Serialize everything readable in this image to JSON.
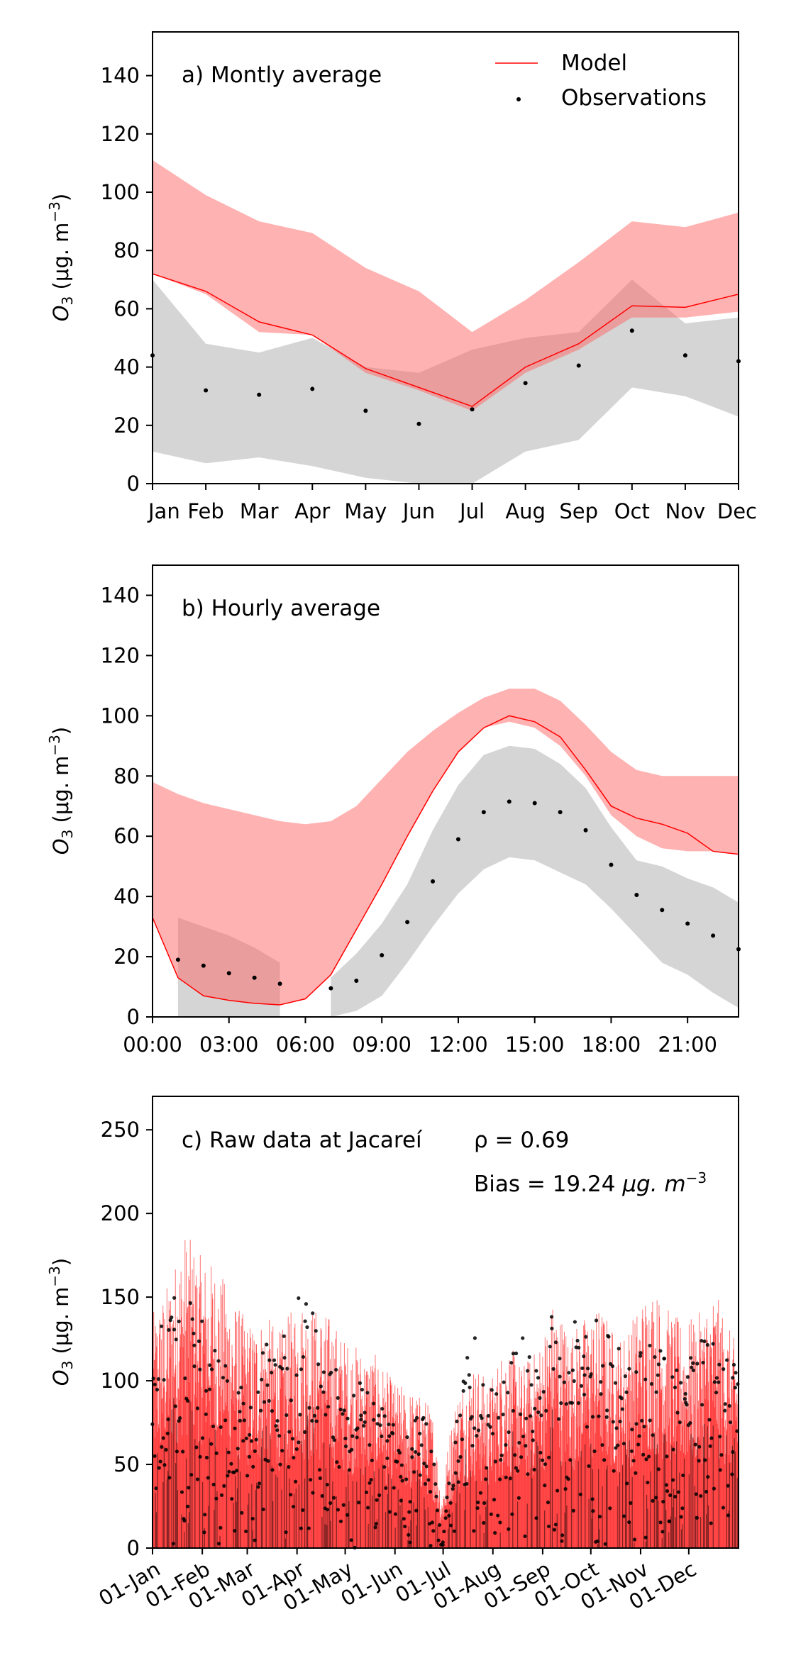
{
  "chart_data": [
    {
      "type": "line",
      "panel_label": "a) Montly average",
      "xlabel": "",
      "ylabel_main": "O",
      "ylabel_sub": "3",
      "ylabel_unit": "(μg. m",
      "ylabel_exp": "−3",
      "ylabel_close": ")",
      "ylim": [
        0,
        155
      ],
      "yticks": [
        0,
        20,
        40,
        60,
        80,
        100,
        120,
        140
      ],
      "categories": [
        "Jan",
        "Feb",
        "Mar",
        "Apr",
        "May",
        "Jun",
        "Jul",
        "Aug",
        "Sep",
        "Oct",
        "Nov",
        "Dec"
      ],
      "legend": {
        "model": "Model",
        "obs": "Observations",
        "placement": "top-right"
      },
      "series": [
        {
          "name": "Model",
          "type": "line",
          "color": "#ff0000",
          "values": [
            72,
            66,
            55.5,
            51,
            39.5,
            33,
            26.5,
            40,
            48,
            61,
            60.5,
            65
          ]
        },
        {
          "name": "Observations",
          "type": "scatter",
          "color": "#000000",
          "values": [
            44,
            32,
            30.5,
            32.5,
            25,
            20.5,
            25.5,
            34.5,
            40.5,
            52.5,
            44,
            42
          ]
        }
      ],
      "model_band": {
        "color": "#ff6666",
        "lower": [
          72,
          65,
          52,
          51,
          38,
          32,
          25,
          38,
          46,
          57,
          57,
          59
        ],
        "upper": [
          111,
          99,
          90,
          86,
          74,
          66,
          52,
          63,
          76,
          90,
          88,
          93
        ]
      },
      "obs_band": {
        "color": "#bfbfbf",
        "lower": [
          11,
          7,
          9,
          6,
          2,
          0,
          0,
          11,
          15,
          33,
          30,
          23
        ],
        "upper": [
          70,
          48,
          45,
          50,
          40,
          38,
          46,
          50,
          52,
          70,
          55,
          57
        ]
      }
    },
    {
      "type": "line",
      "panel_label": "b) Hourly average",
      "xlabel": "",
      "ylabel_main": "O",
      "ylabel_sub": "3",
      "ylabel_unit": "(μg. m",
      "ylabel_exp": "−3",
      "ylabel_close": ")",
      "ylim": [
        0,
        150
      ],
      "yticks": [
        0,
        20,
        40,
        60,
        80,
        100,
        120,
        140
      ],
      "xlim": [
        0,
        23
      ],
      "xtick_values": [
        0,
        3,
        6,
        9,
        12,
        15,
        18,
        21
      ],
      "xtick_labels": [
        "00:00",
        "03:00",
        "06:00",
        "09:00",
        "12:00",
        "15:00",
        "18:00",
        "21:00"
      ],
      "x": [
        0,
        1,
        2,
        3,
        4,
        5,
        6,
        7,
        8,
        9,
        10,
        11,
        12,
        13,
        14,
        15,
        16,
        17,
        18,
        19,
        20,
        21,
        22,
        23
      ],
      "series": [
        {
          "name": "Model",
          "type": "line",
          "color": "#ff0000",
          "values": [
            33,
            13,
            7,
            5.5,
            4.5,
            4,
            6,
            14,
            29,
            44,
            60,
            75,
            88,
            96,
            100,
            98,
            93,
            82,
            70,
            66,
            64,
            61,
            55,
            54
          ]
        },
        {
          "name": "Observations",
          "type": "scatter",
          "color": "#000000",
          "values": [
            null,
            19,
            17,
            14.5,
            13,
            11,
            null,
            9.5,
            12,
            20.5,
            31.5,
            45,
            59,
            68,
            71.5,
            71,
            68,
            62,
            50.5,
            40.5,
            35.5,
            31,
            27,
            22.5
          ]
        }
      ],
      "model_band": {
        "color": "#ff6666",
        "lower": [
          33,
          13,
          7,
          5.5,
          4.5,
          4,
          6,
          14,
          29,
          44,
          60,
          75,
          88,
          96,
          98,
          96,
          90,
          80,
          67,
          60,
          56,
          55,
          55,
          54
        ],
        "upper": [
          78,
          74,
          71,
          69,
          67,
          65,
          64,
          65,
          70,
          79,
          88,
          95,
          101,
          106,
          109,
          109,
          105,
          97,
          88,
          82,
          80,
          80,
          80,
          80
        ]
      },
      "obs_band_segments": [
        {
          "x": [
            1,
            2,
            3,
            4,
            5
          ],
          "lower": [
            0,
            0,
            0,
            0,
            0
          ],
          "upper": [
            33,
            30,
            27,
            23,
            18
          ]
        },
        {
          "x": [
            7,
            8,
            9,
            10,
            11,
            12,
            13,
            14,
            15,
            16,
            17,
            18,
            19,
            20,
            21,
            22,
            23
          ],
          "lower": [
            0,
            2,
            7,
            18,
            30,
            41,
            49,
            53,
            52,
            48,
            44,
            36,
            27,
            18,
            14,
            8,
            3
          ],
          "upper": [
            13,
            21,
            31,
            44,
            62,
            77,
            87,
            90,
            89,
            84,
            76,
            63,
            52,
            50,
            46,
            43,
            38
          ]
        }
      ],
      "obs_band_color": "#bfbfbf"
    },
    {
      "type": "line",
      "panel_label": "c) Raw data at Jacareí",
      "rho_text": "ρ = 0.69",
      "bias_prefix": "Bias = 19.24",
      "bias_unit": "μg. m",
      "bias_exp": "−3",
      "xlabel": "",
      "ylabel_main": "O",
      "ylabel_sub": "3",
      "ylabel_unit": "(μg. m",
      "ylabel_exp": "−3",
      "ylabel_close": ")",
      "ylim": [
        0,
        270
      ],
      "yticks": [
        0,
        50,
        100,
        150,
        200,
        250
      ],
      "xlim": [
        0,
        365
      ],
      "xtick_values": [
        0,
        31,
        59,
        90,
        120,
        151,
        181,
        212,
        243,
        273,
        304,
        334
      ],
      "xtick_labels": [
        "01-Jan",
        "01-Feb",
        "01-Mar",
        "01-Apr",
        "01-May",
        "01-Jun",
        "01-Jul",
        "01-Aug",
        "01-Sep",
        "01-Oct",
        "01-Nov",
        "01-Dec"
      ],
      "series_names": [
        "Model",
        "Observations"
      ],
      "model_envelope_days": [
        0,
        10,
        20,
        30,
        40,
        50,
        60,
        70,
        80,
        90,
        100,
        110,
        120,
        130,
        140,
        150,
        160,
        170,
        175,
        180,
        185,
        190,
        200,
        210,
        220,
        230,
        240,
        250,
        260,
        270,
        280,
        290,
        300,
        310,
        320,
        330,
        340,
        350,
        360,
        365
      ],
      "model_envelope_max": [
        140,
        160,
        190,
        175,
        170,
        150,
        135,
        140,
        130,
        150,
        145,
        140,
        125,
        120,
        115,
        100,
        95,
        90,
        80,
        30,
        70,
        95,
        110,
        100,
        125,
        110,
        120,
        150,
        130,
        140,
        145,
        125,
        140,
        160,
        145,
        135,
        140,
        155,
        130,
        120
      ],
      "obs_envelope_max": [
        110,
        150,
        155,
        140,
        120,
        110,
        90,
        130,
        125,
        150,
        145,
        120,
        90,
        100,
        85,
        80,
        78,
        80,
        60,
        0,
        45,
        80,
        135,
        100,
        110,
        130,
        105,
        145,
        125,
        155,
        135,
        120,
        110,
        130,
        120,
        100,
        130,
        125,
        120,
        110
      ],
      "model_color": "#ff0000",
      "obs_color": "#000000"
    }
  ]
}
